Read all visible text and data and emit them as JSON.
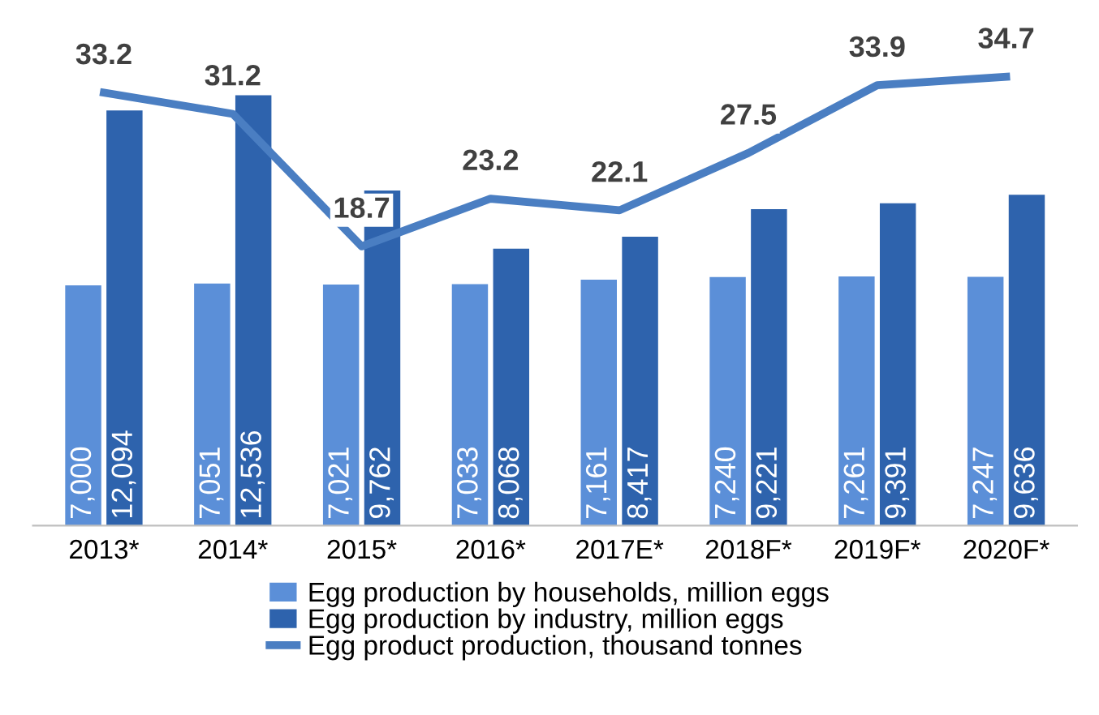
{
  "chart_data": {
    "type": "bar",
    "categories": [
      "2013*",
      "2014*",
      "2015*",
      "2016*",
      "2017E*",
      "2018F*",
      "2019F*",
      "2020F*"
    ],
    "series": [
      {
        "name": "Egg production by households, million eggs",
        "color": "#5b8fd8",
        "values": [
          7000,
          7051,
          7021,
          7033,
          7161,
          7240,
          7261,
          7247
        ],
        "value_labels": [
          "7,000",
          "7,051",
          "7,021",
          "7,033",
          "7,161",
          "7,240",
          "7,261",
          "7,247"
        ]
      },
      {
        "name": "Egg production by industry, million eggs",
        "color": "#2e63ad",
        "values": [
          12094,
          12536,
          9762,
          8068,
          8417,
          9221,
          9391,
          9636
        ],
        "value_labels": [
          "12,094",
          "12,536",
          "9,762",
          "8,068",
          "8,417",
          "9,221",
          "9,391",
          "9,636"
        ]
      },
      {
        "name": "Egg product production, thousand tonnes",
        "type": "line",
        "axis": "y2",
        "color": "#4a7ec2",
        "values": [
          33.2,
          31.2,
          18.7,
          23.2,
          22.1,
          27.5,
          33.9,
          34.7
        ],
        "value_labels": [
          "33.2",
          "31.2",
          "18.7",
          "23.2",
          "22.1",
          "27.5",
          "33.9",
          "34.7"
        ]
      }
    ],
    "tick_labels": "x",
    "legend": "bottom",
    "grid": false,
    "marker": "none",
    "line_style": "solid"
  }
}
